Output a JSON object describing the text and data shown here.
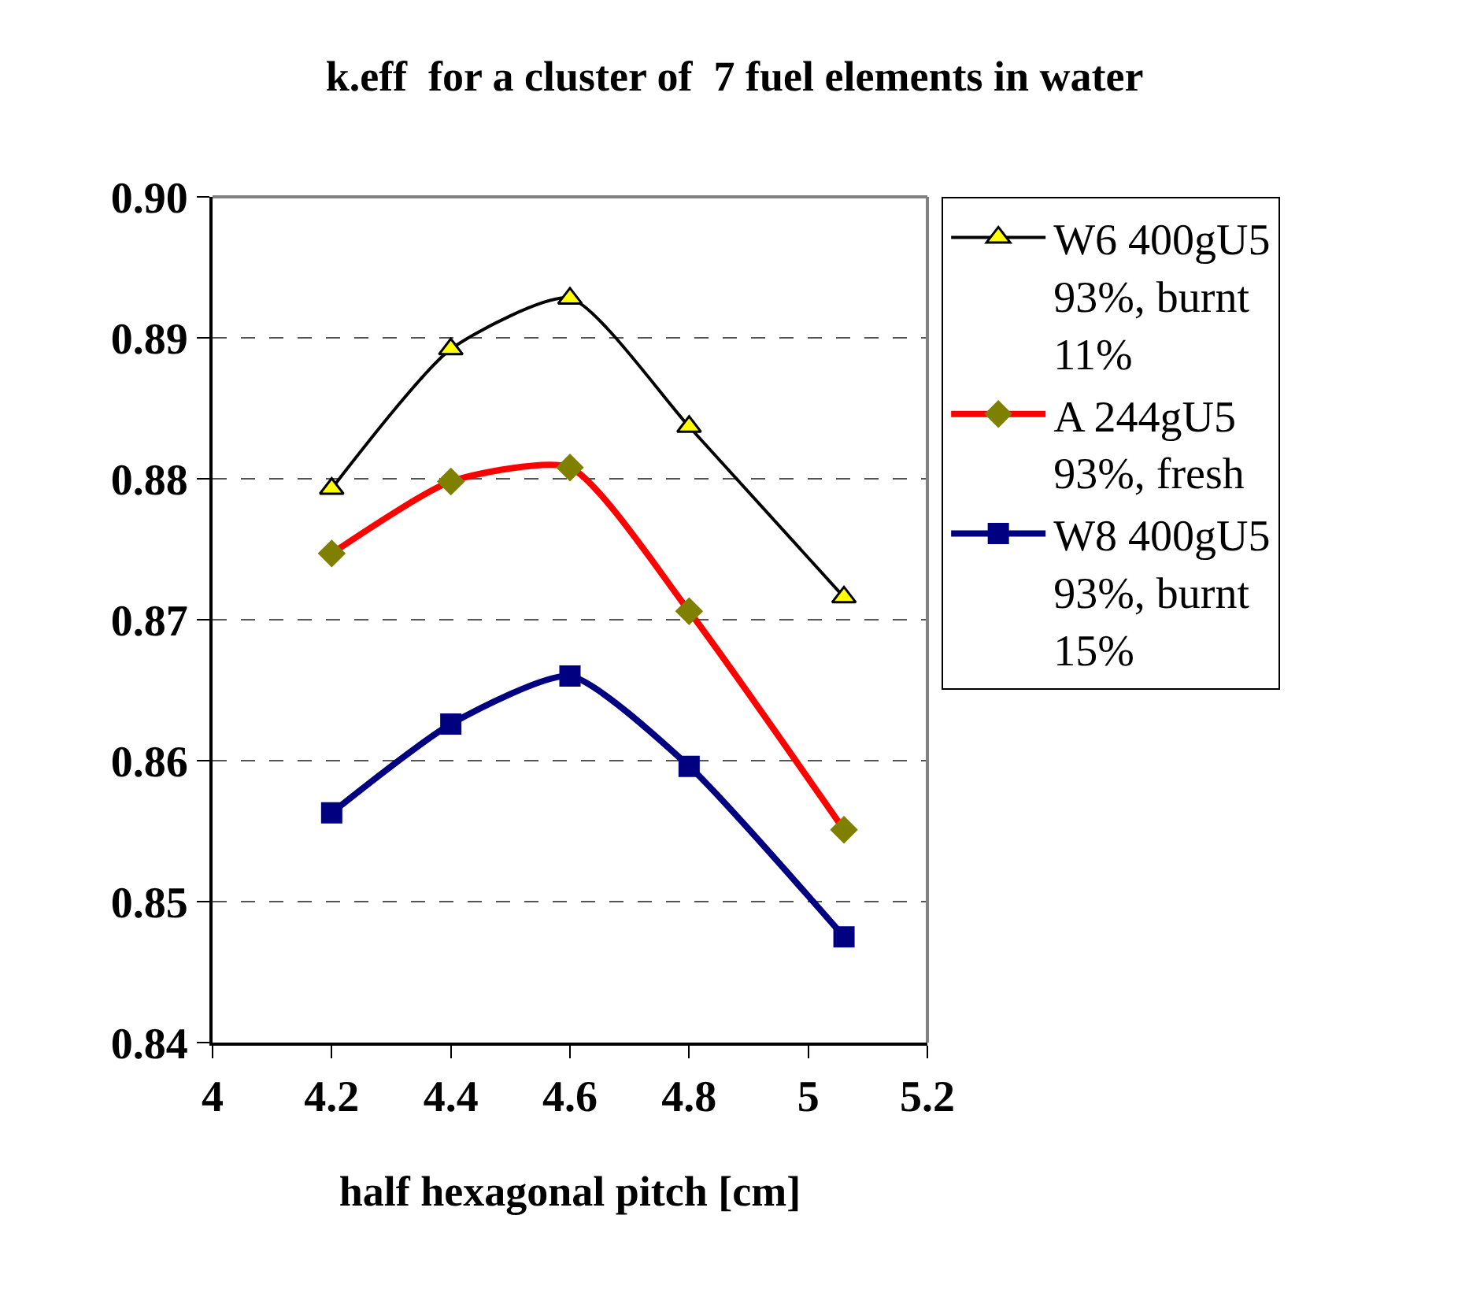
{
  "chart_data": {
    "type": "line",
    "title": "k.eff  for a cluster of  7 fuel elements in water",
    "xlabel": "half hexagonal pitch [cm]",
    "x": [
      4.2,
      4.4,
      4.6,
      4.8,
      5.06
    ],
    "series": [
      {
        "name": "W6 400gU5 93%, burnt 11%",
        "color": "#000000",
        "colors": [
          "#ffff00",
          "#ffff00",
          "#ffff00",
          "#ffff00",
          "#ffff00"
        ],
        "marker": "triangle",
        "values": [
          0.8793,
          0.8892,
          0.8928,
          0.8837,
          0.8716
        ]
      },
      {
        "name": "A 244gU5 93%, fresh",
        "color": "#ff0000",
        "colors": [
          "#808000",
          "#808000",
          "#808000",
          "#808000",
          "#808000"
        ],
        "marker": "diamond",
        "values": [
          0.8747,
          0.8798,
          0.8808,
          0.8706,
          0.8551
        ]
      },
      {
        "name": "W8 400gU5 93%, burnt 15%",
        "color": "#000080",
        "colors": [
          "#000080",
          "#000080",
          "#000080",
          "#000080",
          "#000080"
        ],
        "marker": "square",
        "values": [
          0.8563,
          0.8626,
          0.866,
          0.8596,
          0.8475
        ]
      }
    ],
    "xlim": [
      4,
      5.2
    ],
    "xticks": [
      4,
      4.2,
      4.4,
      4.6,
      4.8,
      5,
      5.2
    ],
    "ylim": [
      0.84,
      0.9
    ],
    "yticks": [
      0.84,
      0.85,
      0.86,
      0.87,
      0.88,
      0.89,
      {
        "value": 0.9,
        "label": "0.90"
      }
    ],
    "grid": "y",
    "legend": "right",
    "line_style": "solid"
  }
}
